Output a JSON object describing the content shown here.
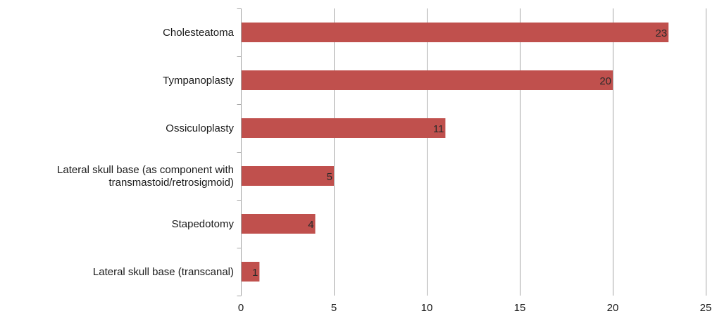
{
  "chart_data": {
    "type": "bar",
    "orientation": "horizontal",
    "categories": [
      [
        "Cholesteatoma"
      ],
      [
        "Tympanoplasty"
      ],
      [
        "Ossiculoplasty"
      ],
      [
        "Lateral skull base (as component with",
        "transmastoid/retrosigmoid)"
      ],
      [
        "Stapedotomy"
      ],
      [
        "Lateral skull base (transcanal)"
      ]
    ],
    "values": [
      23,
      20,
      11,
      5,
      4,
      1
    ],
    "data_labels": [
      "23",
      "20",
      "11",
      "5",
      "4",
      "1"
    ],
    "xlim": [
      0,
      25
    ],
    "x_ticks": [
      "0",
      "5",
      "10",
      "15",
      "20",
      "25"
    ],
    "grid": "vertical",
    "legend": "none",
    "colors": {
      "bar": "#c0504d",
      "grid": "#a6a6a6",
      "axis": "#a6a6a6"
    }
  }
}
